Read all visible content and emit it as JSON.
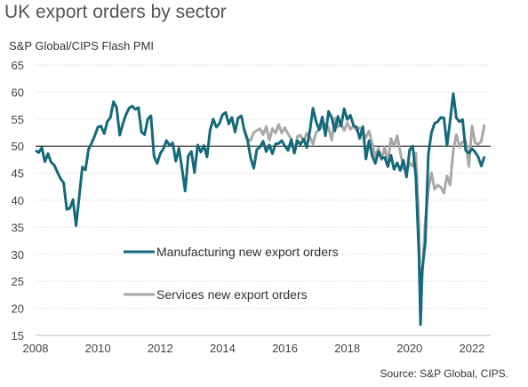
{
  "title": "UK export orders by sector",
  "subtitle": "S&P Global/CIPS Flash PMI",
  "source": "Source: S&P Global, CIPS.",
  "colors": {
    "manufacturing": "#14697a",
    "services": "#a8a8a8",
    "reference": "#000000",
    "grid": "#dddddd"
  },
  "chart_data": {
    "type": "line",
    "xlim": [
      2008,
      2022.6
    ],
    "ylim": [
      15,
      65
    ],
    "x_ticks": [
      "2008",
      "2010",
      "2012",
      "2014",
      "2016",
      "2018",
      "2020",
      "2022"
    ],
    "y_ticks": [
      "65",
      "60",
      "55",
      "50",
      "45",
      "40",
      "35",
      "30",
      "25",
      "20",
      "15"
    ],
    "reference_line": 50,
    "series": [
      {
        "name": "Manufacturing new export orders",
        "color": "#14697a",
        "points": [
          [
            2008.0,
            49.2
          ],
          [
            2008.1,
            48.8
          ],
          [
            2008.2,
            49.7
          ],
          [
            2008.3,
            47.1
          ],
          [
            2008.4,
            48.6
          ],
          [
            2008.5,
            47.0
          ],
          [
            2008.6,
            46.5
          ],
          [
            2008.7,
            45.2
          ],
          [
            2008.8,
            44.0
          ],
          [
            2008.9,
            43.2
          ],
          [
            2009.0,
            38.3
          ],
          [
            2009.1,
            38.5
          ],
          [
            2009.2,
            40.1
          ],
          [
            2009.3,
            35.3
          ],
          [
            2009.4,
            40.6
          ],
          [
            2009.5,
            46.1
          ],
          [
            2009.6,
            45.6
          ],
          [
            2009.7,
            49.4
          ],
          [
            2009.8,
            50.6
          ],
          [
            2009.9,
            51.9
          ],
          [
            2010.0,
            53.5
          ],
          [
            2010.1,
            53.7
          ],
          [
            2010.2,
            52.3
          ],
          [
            2010.3,
            54.5
          ],
          [
            2010.4,
            55.3
          ],
          [
            2010.5,
            58.2
          ],
          [
            2010.6,
            57.1
          ],
          [
            2010.7,
            52.0
          ],
          [
            2010.8,
            54.1
          ],
          [
            2010.9,
            55.8
          ],
          [
            2011.0,
            57.0
          ],
          [
            2011.1,
            57.4
          ],
          [
            2011.2,
            56.8
          ],
          [
            2011.3,
            57.1
          ],
          [
            2011.4,
            52.6
          ],
          [
            2011.5,
            52.1
          ],
          [
            2011.6,
            55.0
          ],
          [
            2011.7,
            55.6
          ],
          [
            2011.8,
            48.1
          ],
          [
            2011.9,
            46.8
          ],
          [
            2012.0,
            48.6
          ],
          [
            2012.1,
            49.5
          ],
          [
            2012.2,
            51.0
          ],
          [
            2012.3,
            50.1
          ],
          [
            2012.4,
            50.6
          ],
          [
            2012.5,
            47.2
          ],
          [
            2012.6,
            49.6
          ],
          [
            2012.7,
            45.8
          ],
          [
            2012.8,
            41.7
          ],
          [
            2012.9,
            48.2
          ],
          [
            2013.0,
            49.0
          ],
          [
            2013.1,
            45.1
          ],
          [
            2013.2,
            50.2
          ],
          [
            2013.3,
            48.9
          ],
          [
            2013.4,
            50.1
          ],
          [
            2013.5,
            48.0
          ],
          [
            2013.6,
            53.0
          ],
          [
            2013.7,
            55.0
          ],
          [
            2013.8,
            53.5
          ],
          [
            2013.9,
            54.2
          ],
          [
            2014.0,
            55.8
          ],
          [
            2014.1,
            56.2
          ],
          [
            2014.2,
            54.1
          ],
          [
            2014.3,
            55.3
          ],
          [
            2014.4,
            52.6
          ],
          [
            2014.5,
            55.2
          ],
          [
            2014.6,
            55.6
          ],
          [
            2014.7,
            52.8
          ],
          [
            2014.8,
            51.1
          ],
          [
            2014.9,
            47.8
          ],
          [
            2015.0,
            45.9
          ],
          [
            2015.1,
            49.4
          ],
          [
            2015.2,
            49.8
          ],
          [
            2015.3,
            50.9
          ],
          [
            2015.4,
            49.0
          ],
          [
            2015.5,
            50.2
          ],
          [
            2015.6,
            48.6
          ],
          [
            2015.7,
            50.4
          ],
          [
            2015.8,
            50.5
          ],
          [
            2015.9,
            51.0
          ],
          [
            2016.0,
            50.0
          ],
          [
            2016.1,
            49.2
          ],
          [
            2016.2,
            51.2
          ],
          [
            2016.3,
            48.7
          ],
          [
            2016.4,
            51.0
          ],
          [
            2016.5,
            50.3
          ],
          [
            2016.6,
            51.3
          ],
          [
            2016.7,
            49.7
          ],
          [
            2016.8,
            52.8
          ],
          [
            2016.9,
            57.0
          ],
          [
            2017.0,
            54.5
          ],
          [
            2017.1,
            53.0
          ],
          [
            2017.2,
            55.4
          ],
          [
            2017.3,
            51.9
          ],
          [
            2017.4,
            56.4
          ],
          [
            2017.5,
            55.2
          ],
          [
            2017.6,
            52.8
          ],
          [
            2017.7,
            55.5
          ],
          [
            2017.8,
            53.7
          ],
          [
            2017.9,
            56.9
          ],
          [
            2018.0,
            54.9
          ],
          [
            2018.1,
            55.7
          ],
          [
            2018.2,
            53.8
          ],
          [
            2018.3,
            53.5
          ],
          [
            2018.4,
            51.4
          ],
          [
            2018.5,
            53.6
          ],
          [
            2018.6,
            47.6
          ],
          [
            2018.7,
            51.0
          ],
          [
            2018.8,
            48.2
          ],
          [
            2018.9,
            46.8
          ],
          [
            2019.0,
            49.0
          ],
          [
            2019.1,
            47.7
          ],
          [
            2019.2,
            47.9
          ],
          [
            2019.3,
            46.2
          ],
          [
            2019.4,
            48.3
          ],
          [
            2019.5,
            45.7
          ],
          [
            2019.6,
            46.9
          ],
          [
            2019.7,
            45.5
          ],
          [
            2019.8,
            47.4
          ],
          [
            2019.9,
            44.3
          ],
          [
            2020.0,
            49.3
          ],
          [
            2020.1,
            50.0
          ],
          [
            2020.2,
            44.4
          ],
          [
            2020.3,
            30.0
          ],
          [
            2020.35,
            17.0
          ],
          [
            2020.4,
            26.8
          ],
          [
            2020.5,
            32.1
          ],
          [
            2020.6,
            48.5
          ],
          [
            2020.7,
            52.5
          ],
          [
            2020.8,
            54.2
          ],
          [
            2020.9,
            54.5
          ],
          [
            2021.0,
            55.3
          ],
          [
            2021.1,
            55.2
          ],
          [
            2021.2,
            50.1
          ],
          [
            2021.3,
            54.7
          ],
          [
            2021.4,
            59.7
          ],
          [
            2021.5,
            55.2
          ],
          [
            2021.6,
            54.5
          ],
          [
            2021.7,
            54.9
          ],
          [
            2021.8,
            49.2
          ],
          [
            2021.9,
            48.7
          ],
          [
            2022.0,
            49.5
          ],
          [
            2022.1,
            48.9
          ],
          [
            2022.2,
            48.0
          ],
          [
            2022.3,
            46.3
          ],
          [
            2022.4,
            48.1
          ]
        ]
      },
      {
        "name": "Services new export orders",
        "color": "#a8a8a8",
        "points": [
          [
            2014.7,
            53.1
          ],
          [
            2014.8,
            51.3
          ],
          [
            2014.9,
            51.0
          ],
          [
            2015.0,
            52.5
          ],
          [
            2015.1,
            52.9
          ],
          [
            2015.2,
            53.2
          ],
          [
            2015.3,
            52.1
          ],
          [
            2015.4,
            53.6
          ],
          [
            2015.5,
            51.1
          ],
          [
            2015.6,
            53.2
          ],
          [
            2015.7,
            52.4
          ],
          [
            2015.8,
            54.0
          ],
          [
            2015.9,
            52.4
          ],
          [
            2016.0,
            53.4
          ],
          [
            2016.1,
            52.2
          ],
          [
            2016.2,
            51.4
          ],
          [
            2016.3,
            48.7
          ],
          [
            2016.4,
            51.8
          ],
          [
            2016.5,
            52.0
          ],
          [
            2016.6,
            50.9
          ],
          [
            2016.7,
            52.4
          ],
          [
            2016.8,
            51.7
          ],
          [
            2016.9,
            50.4
          ],
          [
            2017.0,
            52.5
          ],
          [
            2017.1,
            53.1
          ],
          [
            2017.2,
            53.6
          ],
          [
            2017.3,
            54.1
          ],
          [
            2017.4,
            53.4
          ],
          [
            2017.5,
            51.1
          ],
          [
            2017.6,
            55.2
          ],
          [
            2017.7,
            53.5
          ],
          [
            2017.8,
            54.1
          ],
          [
            2017.9,
            52.9
          ],
          [
            2018.0,
            54.3
          ],
          [
            2018.1,
            53.1
          ],
          [
            2018.2,
            53.7
          ],
          [
            2018.3,
            52.9
          ],
          [
            2018.4,
            53.4
          ],
          [
            2018.5,
            52.5
          ],
          [
            2018.6,
            51.6
          ],
          [
            2018.7,
            52.8
          ],
          [
            2018.8,
            50.5
          ],
          [
            2018.9,
            48.1
          ],
          [
            2019.0,
            49.6
          ],
          [
            2019.1,
            47.5
          ],
          [
            2019.2,
            49.8
          ],
          [
            2019.3,
            47.0
          ],
          [
            2019.4,
            51.4
          ],
          [
            2019.5,
            49.9
          ],
          [
            2019.6,
            51.9
          ],
          [
            2019.7,
            48.9
          ],
          [
            2019.8,
            45.9
          ],
          [
            2019.9,
            45.3
          ],
          [
            2020.0,
            46.9
          ],
          [
            2020.1,
            46.3
          ],
          [
            2020.2,
            48.7
          ],
          [
            2020.3,
            35.6
          ],
          [
            2020.35,
            17.0
          ],
          [
            2020.4,
            25.3
          ],
          [
            2020.5,
            36.0
          ],
          [
            2020.6,
            41.8
          ],
          [
            2020.7,
            45.1
          ],
          [
            2020.8,
            42.0
          ],
          [
            2020.9,
            42.8
          ],
          [
            2021.0,
            42.4
          ],
          [
            2021.1,
            41.3
          ],
          [
            2021.2,
            44.5
          ],
          [
            2021.3,
            42.8
          ],
          [
            2021.4,
            49.2
          ],
          [
            2021.5,
            52.1
          ],
          [
            2021.6,
            49.8
          ],
          [
            2021.7,
            50.8
          ],
          [
            2021.8,
            50.9
          ],
          [
            2021.9,
            46.2
          ],
          [
            2022.0,
            53.7
          ],
          [
            2022.1,
            50.6
          ],
          [
            2022.2,
            50.3
          ],
          [
            2022.3,
            50.9
          ],
          [
            2022.4,
            54.0
          ]
        ]
      }
    ],
    "legend_entries": [
      "Manufacturing new export orders",
      "Services new export orders"
    ]
  }
}
